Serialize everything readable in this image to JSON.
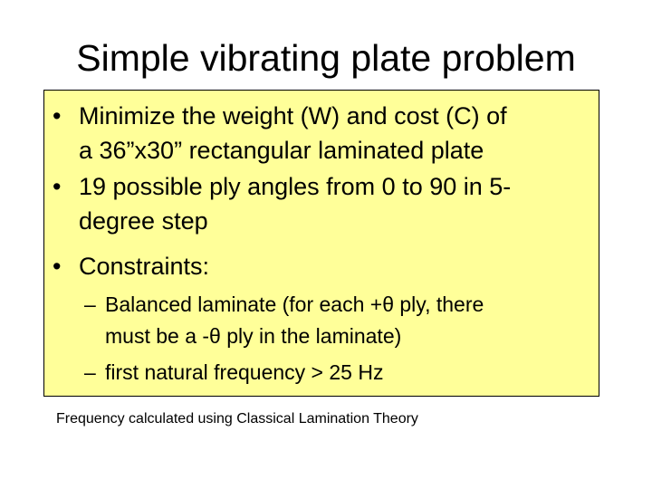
{
  "slide": {
    "title": "Simple vibrating plate problem",
    "bullet_mark": "•",
    "dash_mark": "–",
    "bullets": [
      {
        "lines": [
          "Minimize the weight (W) and cost (C) of",
          "a 36”x30” rectangular laminated plate"
        ]
      },
      {
        "lines": [
          "19 possible ply angles from 0 to 90 in 5-",
          "degree step"
        ]
      },
      {
        "lines": [
          "Constraints:"
        ]
      }
    ],
    "sub_bullets": [
      {
        "lines": [
          "Balanced laminate (for each +θ ply, there",
          "must be a -θ ply in the laminate)"
        ]
      },
      {
        "lines": [
          "first natural frequency > 25 Hz"
        ]
      }
    ],
    "footnote": "Frequency calculated using Classical Lamination Theory",
    "colors": {
      "box_background": "#ffff99",
      "box_border": "#000000",
      "text": "#000000"
    }
  }
}
